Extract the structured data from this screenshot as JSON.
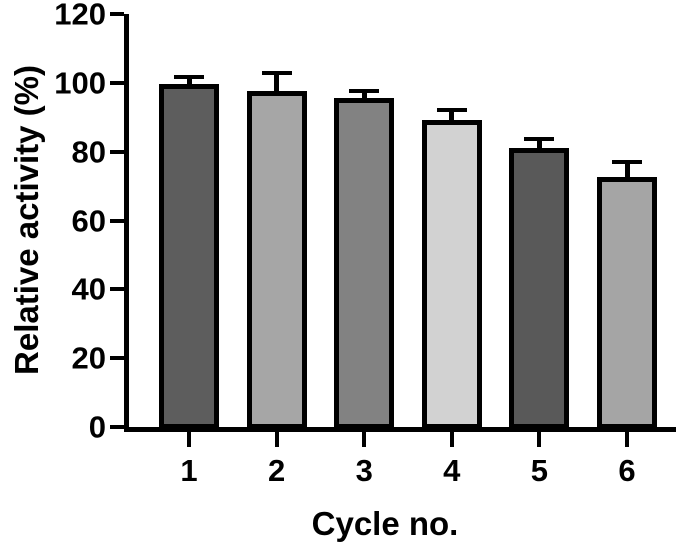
{
  "chart_data": {
    "type": "bar",
    "title": "",
    "xlabel": "Cycle no.",
    "ylabel": "Relative activity (%)",
    "categories": [
      "1",
      "2",
      "3",
      "4",
      "5",
      "6"
    ],
    "series": [
      {
        "name": "Relative activity",
        "values": [
          99.7,
          97.5,
          95.5,
          89.2,
          81.0,
          72.5
        ],
        "errors_plus": [
          1.3,
          4.8,
          1.6,
          2.2,
          2.0,
          4.0
        ]
      }
    ],
    "bar_colors": [
      "#5d5d5d",
      "#a6a6a6",
      "#828282",
      "#d2d2d2",
      "#595959",
      "#a5a5a5"
    ],
    "bar_border_color": "#000000",
    "error_bar_style": "upper-only-with-cap",
    "error_bar_color": "#000000",
    "axis_color": "#000000",
    "ylim": [
      0,
      120
    ],
    "yticks": [
      0,
      20,
      40,
      60,
      80,
      100,
      120
    ],
    "grid": false,
    "legend_position": "none"
  }
}
